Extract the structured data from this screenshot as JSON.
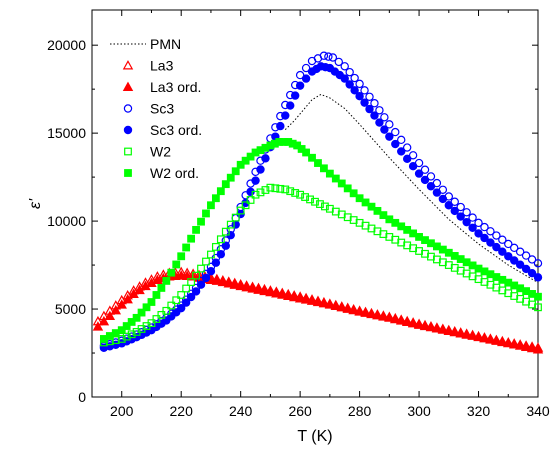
{
  "chart_data": {
    "type": "scatter",
    "xlabel": "T (K)",
    "ylabel": "ε'",
    "xlim": [
      190,
      340
    ],
    "ylim": [
      0,
      22000
    ],
    "xticks": [
      200,
      220,
      240,
      260,
      280,
      300,
      320,
      340
    ],
    "yticks": [
      0,
      5000,
      10000,
      15000,
      20000
    ],
    "grid": false,
    "legend_position": "top-left",
    "series": [
      {
        "name": "PMN",
        "marker": "none",
        "line": "dotted",
        "color": "#000000",
        "x": [
          255,
          258,
          261,
          264,
          267,
          270,
          275,
          280,
          290,
          300,
          310,
          320,
          330,
          340
        ],
        "y": [
          15200,
          15700,
          16300,
          16900,
          17200,
          17000,
          16400,
          15500,
          13600,
          11800,
          10100,
          8700,
          7500,
          6500
        ]
      },
      {
        "name": "La3",
        "marker": "triangle",
        "fill": "open",
        "color": "#ff0000",
        "x": [
          192,
          196,
          200,
          204,
          208,
          212,
          216,
          220,
          224,
          228,
          232,
          236,
          240,
          250,
          260,
          270,
          280,
          290,
          300,
          310,
          320,
          330,
          340
        ],
        "y": [
          4300,
          4900,
          5500,
          6050,
          6500,
          6850,
          7050,
          7100,
          7000,
          6850,
          6700,
          6550,
          6400,
          6050,
          5700,
          5300,
          4900,
          4550,
          4150,
          3800,
          3450,
          3100,
          2800
        ]
      },
      {
        "name": "La3 ord.",
        "marker": "triangle",
        "fill": "filled",
        "color": "#ff0000",
        "x": [
          192,
          196,
          200,
          204,
          208,
          212,
          216,
          220,
          224,
          228,
          232,
          236,
          240,
          250,
          260,
          270,
          280,
          290,
          300,
          310,
          320,
          330,
          340
        ],
        "y": [
          4000,
          4600,
          5250,
          5850,
          6300,
          6650,
          6850,
          6900,
          6850,
          6700,
          6600,
          6450,
          6300,
          5950,
          5600,
          5250,
          4850,
          4500,
          4100,
          3750,
          3400,
          3050,
          2700
        ]
      },
      {
        "name": "Sc3",
        "marker": "circle",
        "fill": "open",
        "color": "#0000ff",
        "x": [
          194,
          200,
          205,
          210,
          215,
          220,
          225,
          230,
          235,
          240,
          245,
          250,
          255,
          260,
          264,
          268,
          271,
          275,
          280,
          285,
          290,
          300,
          310,
          320,
          330,
          340
        ],
        "y": [
          2900,
          3200,
          3550,
          3950,
          4500,
          5200,
          6200,
          7400,
          8900,
          10800,
          12800,
          14700,
          16600,
          18300,
          19100,
          19400,
          19300,
          18800,
          17800,
          16700,
          15500,
          13300,
          11400,
          9900,
          8700,
          7600
        ]
      },
      {
        "name": "Sc3 ord.",
        "marker": "circle",
        "fill": "filled",
        "color": "#0000ff",
        "x": [
          194,
          200,
          205,
          210,
          215,
          220,
          225,
          230,
          235,
          240,
          245,
          250,
          255,
          260,
          264,
          267,
          270,
          275,
          280,
          285,
          290,
          300,
          310,
          320,
          330,
          340
        ],
        "y": [
          2800,
          3050,
          3400,
          3800,
          4350,
          5050,
          6000,
          7150,
          8600,
          10400,
          12300,
          14200,
          16000,
          17700,
          18500,
          18800,
          18700,
          18100,
          17100,
          16000,
          14800,
          12700,
          10900,
          9300,
          8000,
          6800
        ]
      },
      {
        "name": "W2",
        "marker": "square",
        "fill": "open",
        "color": "#00ff00",
        "x": [
          194,
          200,
          205,
          210,
          215,
          220,
          225,
          230,
          235,
          240,
          245,
          250,
          255,
          260,
          265,
          270,
          280,
          290,
          300,
          310,
          320,
          330,
          340
        ],
        "y": [
          3100,
          3300,
          3700,
          4200,
          4900,
          5800,
          6900,
          8100,
          9400,
          10600,
          11500,
          11900,
          11800,
          11500,
          11100,
          10700,
          9900,
          9100,
          8300,
          7500,
          6700,
          5900,
          5100
        ]
      },
      {
        "name": "W2 ord.",
        "marker": "square",
        "fill": "filled",
        "color": "#00ff00",
        "x": [
          194,
          200,
          205,
          210,
          215,
          220,
          225,
          230,
          235,
          240,
          245,
          250,
          253,
          256,
          259,
          262,
          266,
          270,
          280,
          290,
          300,
          310,
          320,
          330,
          340
        ],
        "y": [
          3300,
          3800,
          4500,
          5400,
          6600,
          8000,
          9500,
          10900,
          12100,
          13200,
          13900,
          14300,
          14500,
          14500,
          14300,
          13900,
          13300,
          12700,
          11300,
          10100,
          9100,
          8200,
          7300,
          6500,
          5700
        ]
      }
    ]
  }
}
